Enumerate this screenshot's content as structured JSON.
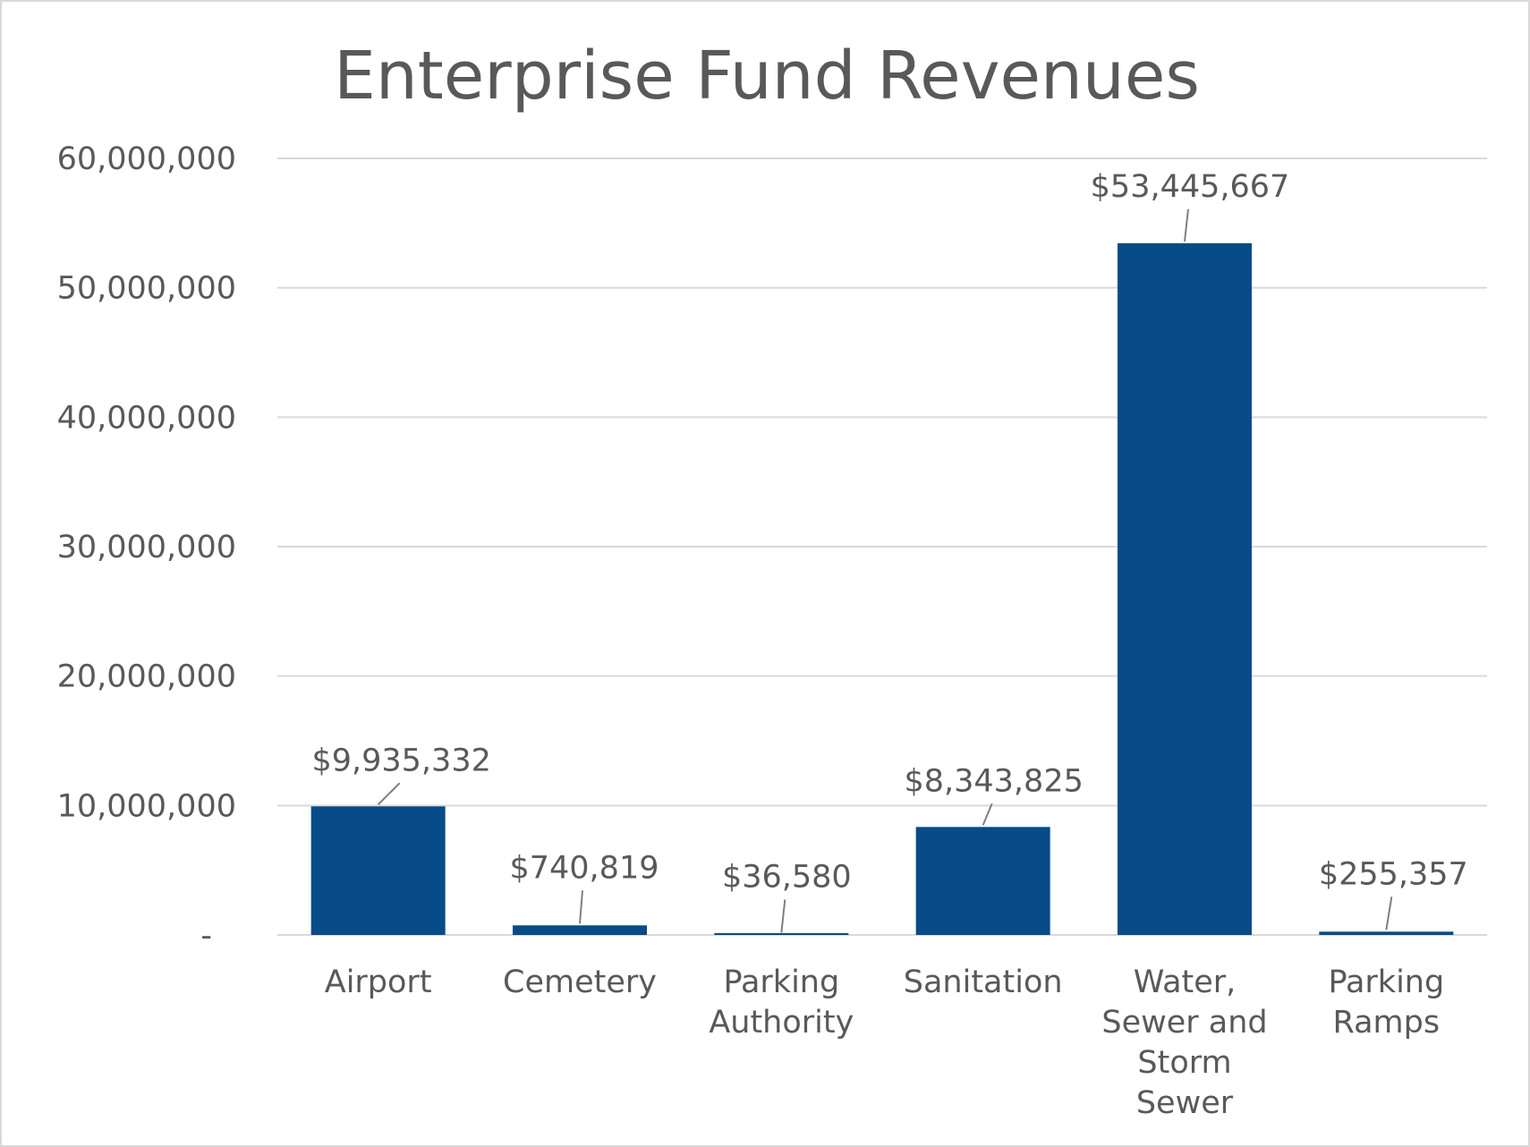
{
  "chart_data": {
    "type": "bar",
    "title": "Enterprise Fund Revenues",
    "xlabel": "",
    "ylabel": "",
    "ylim": [
      0,
      60000000
    ],
    "grid": true,
    "legend": "none",
    "bar_color": "#074b88",
    "y_ticks": [
      {
        "value": 0,
        "label": "-"
      },
      {
        "value": 10000000,
        "label": "10,000,000"
      },
      {
        "value": 20000000,
        "label": "20,000,000"
      },
      {
        "value": 30000000,
        "label": "30,000,000"
      },
      {
        "value": 40000000,
        "label": "40,000,000"
      },
      {
        "value": 50000000,
        "label": "50,000,000"
      },
      {
        "value": 60000000,
        "label": "60,000,000"
      }
    ],
    "categories": [
      [
        "Airport"
      ],
      [
        "Cemetery"
      ],
      [
        "Parking",
        "Authority"
      ],
      [
        "Sanitation"
      ],
      [
        "Water,",
        "Sewer and",
        "Storm",
        "Sewer"
      ],
      [
        "Parking",
        "Ramps"
      ]
    ],
    "values": [
      9935332,
      740819,
      36580,
      8343825,
      53445667,
      255357
    ],
    "data_labels": [
      "$9,935,332",
      "$740,819",
      "$36,580",
      "$8,343,825",
      "$53,445,667",
      "$255,357"
    ]
  }
}
